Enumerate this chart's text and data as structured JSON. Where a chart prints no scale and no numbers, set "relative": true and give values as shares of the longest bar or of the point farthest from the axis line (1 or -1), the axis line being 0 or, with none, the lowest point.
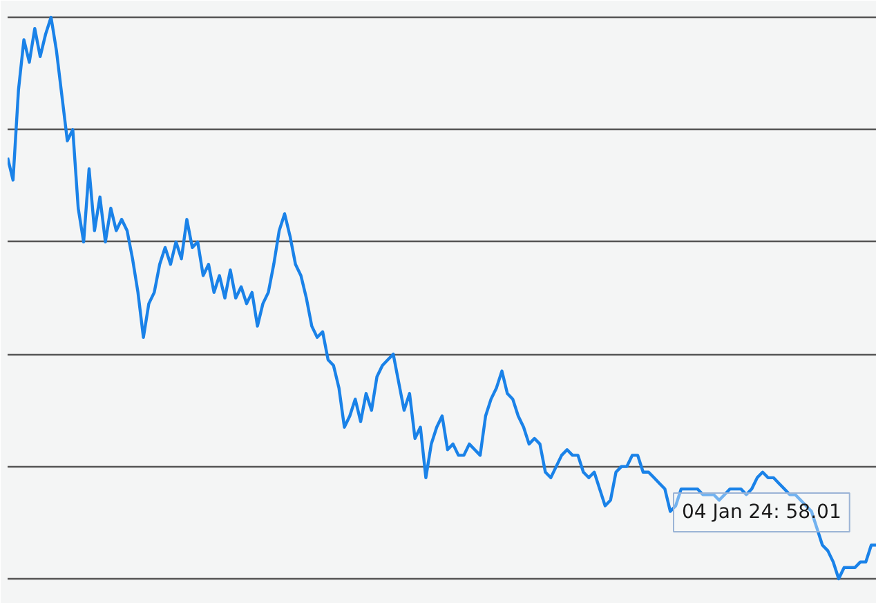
{
  "chart_data": {
    "type": "line",
    "relative": true,
    "grid": "y",
    "annotations": [
      "04 Jan 24: 58.01"
    ],
    "series": [
      {
        "color": "#1a82e8",
        "values": [
          0.75,
          0.71,
          0.87,
          0.96,
          0.92,
          0.98,
          0.93,
          0.97,
          1,
          0.94,
          0.86,
          0.78,
          0.8,
          0.66,
          0.6,
          0.73,
          0.62,
          0.68,
          0.6,
          0.66,
          0.62,
          0.64,
          0.62,
          0.57,
          0.51,
          0.43,
          0.49,
          0.51,
          0.56,
          0.59,
          0.56,
          0.6,
          0.57,
          0.64,
          0.59,
          0.6,
          0.54,
          0.56,
          0.51,
          0.54,
          0.5,
          0.55,
          0.5,
          0.52,
          0.49,
          0.51,
          0.45,
          0.49,
          0.51,
          0.56,
          0.62,
          0.65,
          0.61,
          0.56,
          0.54,
          0.5,
          0.45,
          0.43,
          0.44,
          0.39,
          0.38,
          0.34,
          0.27,
          0.29,
          0.32,
          0.28,
          0.33,
          0.3,
          0.36,
          0.38,
          0.39,
          0.4,
          0.35,
          0.3,
          0.33,
          0.25,
          0.27,
          0.18,
          0.24,
          0.27,
          0.29,
          0.23,
          0.24,
          0.22,
          0.22,
          0.24,
          0.23,
          0.22,
          0.29,
          0.32,
          0.34,
          0.37,
          0.33,
          0.32,
          0.29,
          0.27,
          0.24,
          0.25,
          0.24,
          0.19,
          0.18,
          0.2,
          0.22,
          0.23,
          0.22,
          0.22,
          0.19,
          0.18,
          0.19,
          0.16,
          0.13,
          0.14,
          0.19,
          0.2,
          0.2,
          0.22,
          0.22,
          0.19,
          0.19,
          0.18,
          0.17,
          0.16,
          0.12,
          0.13,
          0.16,
          0.16,
          0.16,
          0.16,
          0.15,
          0.15,
          0.15,
          0.14,
          0.15,
          0.16,
          0.16,
          0.16,
          0.15,
          0.16,
          0.18,
          0.19,
          0.18,
          0.18,
          0.17,
          0.16,
          0.15,
          0.15,
          0.14,
          0.13,
          0.12,
          0.09,
          0.06,
          0.05,
          0.03,
          0,
          0.02,
          0.02,
          0.02,
          0.03,
          0.03,
          0.06,
          0.06
        ]
      }
    ]
  }
}
